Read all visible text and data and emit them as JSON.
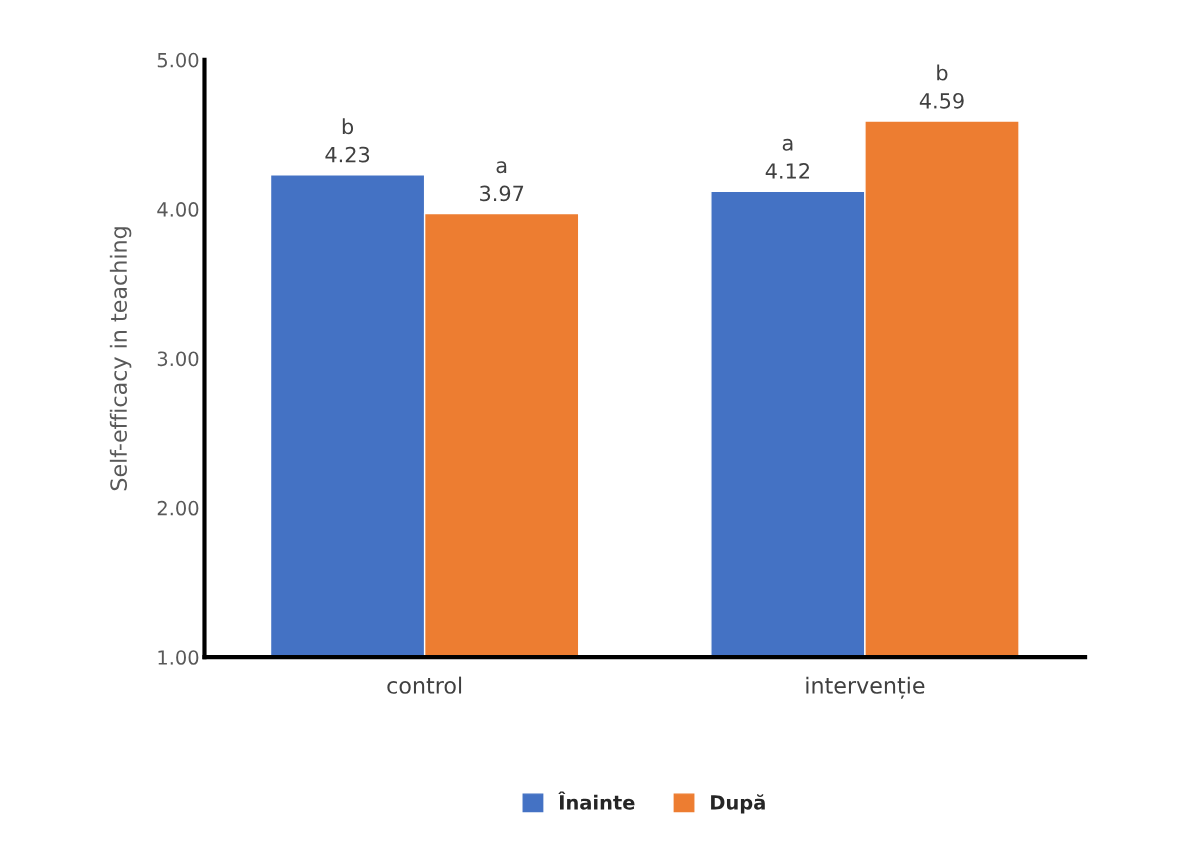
{
  "chart_data": {
    "type": "bar",
    "ylabel": "Self-efficacy in teaching",
    "categories": [
      "control",
      "intervenție"
    ],
    "series": [
      {
        "name": "Înainte",
        "color": "#4472c4",
        "values": [
          4.23,
          4.12
        ],
        "value_labels": [
          "b\n4.23",
          "a\n4.12"
        ]
      },
      {
        "name": "După",
        "color": "#ed7d31",
        "values": [
          3.97,
          4.59
        ],
        "value_labels": [
          "a\n3.97",
          "b\n4.59"
        ]
      }
    ],
    "ylim": [
      1,
      5
    ],
    "yticks": [
      {
        "value": 1,
        "label": "1.00"
      },
      {
        "value": 2,
        "label": "2.00"
      },
      {
        "value": 3,
        "label": "3.00"
      },
      {
        "value": 4,
        "label": "4.00"
      },
      {
        "value": 5,
        "label": "5.00"
      }
    ],
    "grid": false,
    "legend": "bottom"
  }
}
